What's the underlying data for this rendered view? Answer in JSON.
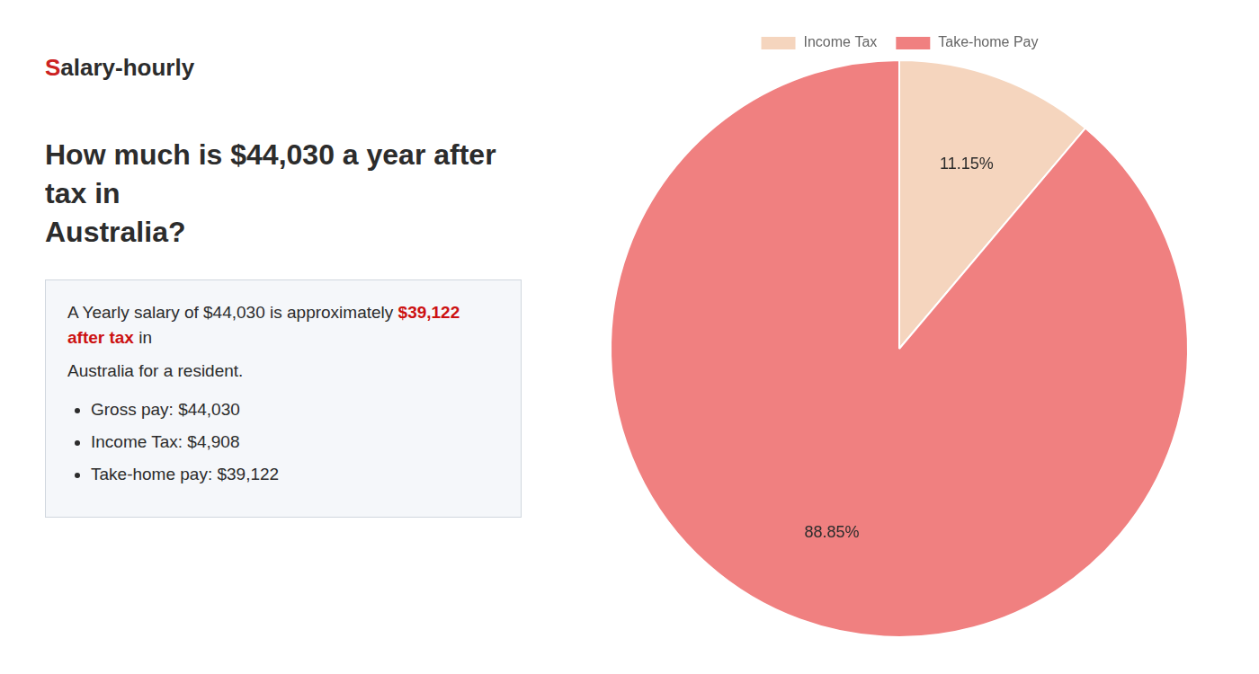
{
  "chart_data": {
    "type": "pie",
    "title": [
      "How much is $44,030 a year after tax in",
      "Australia?"
    ],
    "categories": [
      "Income Tax",
      "Take-home Pay"
    ],
    "values": [
      11.15,
      88.85
    ],
    "value_labels": [
      "11.15%",
      "88.85%"
    ],
    "colors": [
      "#f5d5be",
      "#f08080"
    ],
    "data_labels": true,
    "legend": "top",
    "annotations": [
      [
        {
          "text": "S",
          "color": "#cc2222"
        },
        "alary-hourly"
      ],
      [
        "A Yearly salary of $44,030 is approximately ",
        {
          "text": "$39,122 after tax",
          "color": "#cc1111"
        },
        " in"
      ],
      [
        "Australia for a resident."
      ],
      [
        "Gross pay: $44,030"
      ],
      [
        "Income Tax: $4,908"
      ],
      [
        "Take-home pay: $39,122"
      ]
    ]
  }
}
